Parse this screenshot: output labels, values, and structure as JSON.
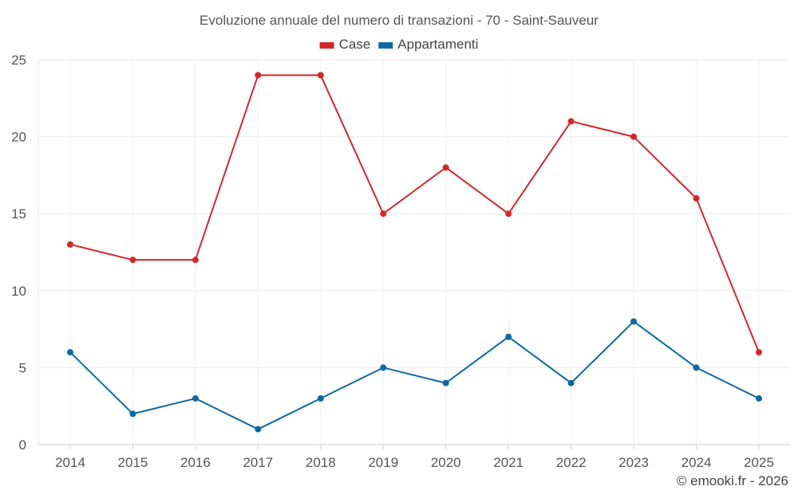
{
  "chart_data": {
    "type": "line",
    "title": "Evoluzione annuale del numero di transazioni - 70 - Saint-Sauveur",
    "categories": [
      "2014",
      "2015",
      "2016",
      "2017",
      "2018",
      "2019",
      "2020",
      "2021",
      "2022",
      "2023",
      "2024",
      "2025"
    ],
    "series": [
      {
        "name": "Case",
        "color": "#d62728",
        "values": [
          13,
          12,
          12,
          24,
          24,
          15,
          18,
          15,
          21,
          20,
          16,
          6
        ]
      },
      {
        "name": "Appartamenti",
        "color": "#0b6aa2",
        "values": [
          6,
          2,
          3,
          1,
          3,
          5,
          4,
          7,
          4,
          8,
          5,
          3
        ]
      }
    ],
    "ylim": [
      0,
      25
    ],
    "yticks": [
      0,
      5,
      10,
      15,
      20,
      25
    ],
    "grid": true,
    "legend": "top-center",
    "xlabel": "",
    "ylabel": ""
  },
  "credit": "© emooki.fr - 2026"
}
